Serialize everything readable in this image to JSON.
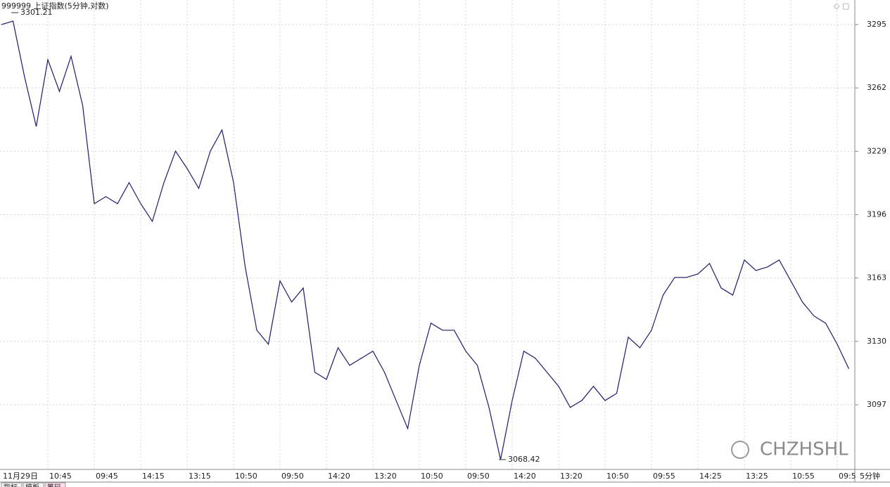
{
  "chart_data": {
    "type": "line",
    "title": "999999 上证指数(5分钟,对数)",
    "period": "5分钟",
    "watermark": "CHZHSHL",
    "annotations": {
      "high": 3301.21,
      "low": 3068.42
    },
    "categories": [
      "11月29日",
      null,
      null,
      null,
      "10:45",
      null,
      null,
      null,
      "09:45",
      null,
      null,
      null,
      "14:15",
      null,
      null,
      null,
      "13:15",
      null,
      null,
      null,
      "10:50",
      null,
      null,
      null,
      "09:50",
      null,
      null,
      null,
      "14:20",
      null,
      null,
      null,
      "13:20",
      null,
      null,
      null,
      "10:50",
      null,
      null,
      null,
      "09:50",
      null,
      null,
      null,
      "14:20",
      null,
      null,
      null,
      "13:20",
      null,
      null,
      null,
      "10:50",
      null,
      null,
      null,
      "09:55",
      null,
      null,
      null,
      "14:25",
      null,
      null,
      null,
      "13:25",
      null,
      null,
      null,
      "10:55",
      null,
      null,
      null,
      "09:5",
      null
    ],
    "series": [
      {
        "color": "#1c1c6e",
        "values": [
          3295.0,
          3296.8,
          3267.6,
          3241.9,
          3276.7,
          3260.2,
          3278.5,
          3252.9,
          3201.7,
          3205.4,
          3201.7,
          3212.7,
          3201.7,
          3192.5,
          3212.7,
          3229.1,
          3220.0,
          3209.7,
          3229.1,
          3240.1,
          3212.7,
          3168.8,
          3135.8,
          3128.5,
          3161.5,
          3150.5,
          3157.8,
          3113.9,
          3110.2,
          3126.7,
          3117.5,
          3121.2,
          3124.9,
          3113.9,
          3099.2,
          3084.6,
          3117.5,
          3139.5,
          3135.8,
          3135.8,
          3124.9,
          3117.5,
          3095.6,
          3068.4,
          3099.2,
          3124.9,
          3121.2,
          3113.9,
          3106.6,
          3095.6,
          3099.2,
          3106.6,
          3099.2,
          3102.9,
          3132.2,
          3126.7,
          3135.8,
          3154.1,
          3163.3,
          3163.3,
          3165.1,
          3170.6,
          3157.8,
          3154.1,
          3172.4,
          3166.9,
          3168.8,
          3172.4,
          3161.5,
          3150.5,
          3143.2,
          3139.5,
          3128.5,
          3115.7
        ]
      }
    ],
    "ylim": [
      3063.3,
      3307.8
    ],
    "yticks": [
      3097,
      3130,
      3163,
      3196,
      3229,
      3262,
      3295
    ],
    "grid": true,
    "tabs": [
      "指标",
      "模板",
      "筹码"
    ]
  }
}
